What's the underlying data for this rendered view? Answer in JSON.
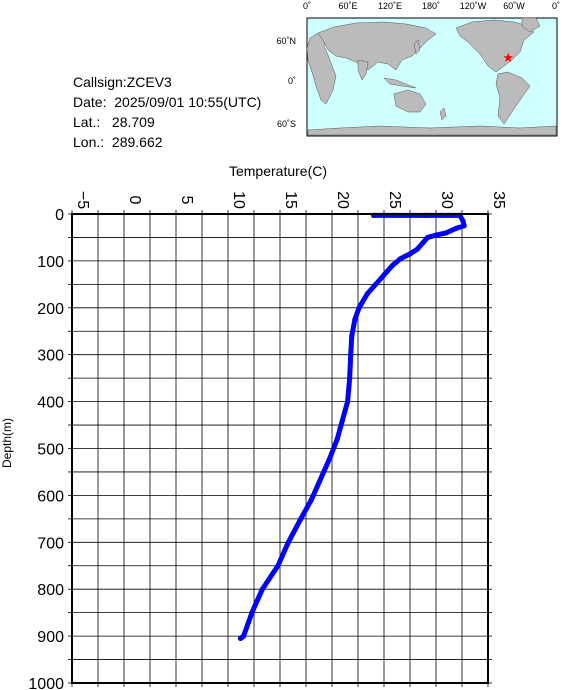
{
  "info": {
    "callsign": "Callsign:ZCEV3",
    "date_label": "Date:",
    "date_value": "2025/09/01 10:55(UTC)",
    "lat_label": "Lat.:",
    "lat_value": "28.709",
    "lon_label": "Lon.:",
    "lon_value": "289.662"
  },
  "map": {
    "top_labels": [
      "0˚",
      "60˚E",
      "120˚E",
      "180˚",
      "120˚W",
      "60˚W",
      "0˚"
    ],
    "lat_labels": [
      "60˚N",
      "0˚",
      "60˚S"
    ],
    "station_marker": {
      "lat": 28.709,
      "lon": 289.662
    },
    "colors": {
      "ocean": "#cfffff",
      "land": "#bbbbbb",
      "marker": "#ff0000"
    }
  },
  "chart_data": {
    "type": "line",
    "title": "",
    "xlabel": "Temperature(C)",
    "ylabel": "Depth(m)",
    "xlim": [
      -5,
      35
    ],
    "ylim": [
      1000,
      0
    ],
    "x_ticks": [
      -5,
      0,
      5,
      10,
      15,
      20,
      25,
      30,
      35
    ],
    "y_ticks": [
      0,
      100,
      200,
      300,
      400,
      500,
      600,
      700,
      800,
      900,
      1000
    ],
    "grid": true,
    "series": [
      {
        "color": "#0000ff",
        "points": [
          {
            "t": 24.0,
            "d": 3
          },
          {
            "t": 29.0,
            "d": 3
          },
          {
            "t": 32.3,
            "d": 3
          },
          {
            "t": 32.6,
            "d": 15
          },
          {
            "t": 32.7,
            "d": 25
          },
          {
            "t": 32.0,
            "d": 30
          },
          {
            "t": 31.0,
            "d": 40
          },
          {
            "t": 30.0,
            "d": 45
          },
          {
            "t": 29.2,
            "d": 50
          },
          {
            "t": 28.8,
            "d": 60
          },
          {
            "t": 28.2,
            "d": 75
          },
          {
            "t": 27.5,
            "d": 85
          },
          {
            "t": 26.6,
            "d": 95
          },
          {
            "t": 25.8,
            "d": 110
          },
          {
            "t": 25.0,
            "d": 130
          },
          {
            "t": 24.2,
            "d": 150
          },
          {
            "t": 23.4,
            "d": 170
          },
          {
            "t": 22.6,
            "d": 200
          },
          {
            "t": 22.2,
            "d": 225
          },
          {
            "t": 21.9,
            "d": 260
          },
          {
            "t": 21.8,
            "d": 300
          },
          {
            "t": 21.7,
            "d": 350
          },
          {
            "t": 21.5,
            "d": 400
          },
          {
            "t": 21.0,
            "d": 440
          },
          {
            "t": 20.5,
            "d": 480
          },
          {
            "t": 19.8,
            "d": 520
          },
          {
            "t": 18.8,
            "d": 570
          },
          {
            "t": 18.0,
            "d": 610
          },
          {
            "t": 17.0,
            "d": 650
          },
          {
            "t": 15.8,
            "d": 700
          },
          {
            "t": 14.8,
            "d": 750
          },
          {
            "t": 13.3,
            "d": 800
          },
          {
            "t": 12.3,
            "d": 850
          },
          {
            "t": 11.5,
            "d": 900
          },
          {
            "t": 11.2,
            "d": 905
          }
        ]
      }
    ]
  }
}
